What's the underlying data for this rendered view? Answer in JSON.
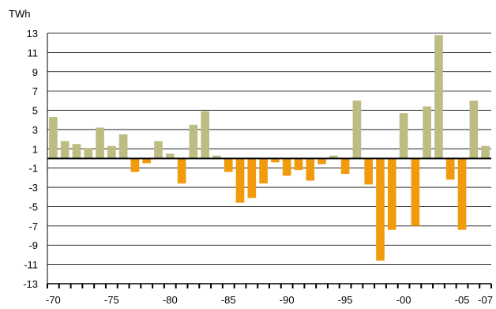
{
  "chart_data": {
    "type": "bar",
    "unit": "TWh",
    "title": "",
    "xlabel": "",
    "ylabel": "TWh",
    "ylim": [
      -13,
      13
    ],
    "yticks": [
      13,
      11,
      9,
      7,
      5,
      3,
      1,
      -1,
      -3,
      -5,
      -7,
      -9,
      -11,
      -13
    ],
    "grid": true,
    "legend": "none",
    "xtick_labels": [
      {
        "label": "-70",
        "year": 1970
      },
      {
        "label": "-75",
        "year": 1975
      },
      {
        "label": "-80",
        "year": 1980
      },
      {
        "label": "-85",
        "year": 1985
      },
      {
        "label": "-90",
        "year": 1990
      },
      {
        "label": "-95",
        "year": 1995
      },
      {
        "label": "-00",
        "year": 2000
      },
      {
        "label": "-05",
        "year": 2005
      },
      {
        "label": "-07",
        "year": 2007
      }
    ],
    "categories": [
      1970,
      1971,
      1972,
      1973,
      1974,
      1975,
      1976,
      1977,
      1978,
      1979,
      1980,
      1981,
      1982,
      1983,
      1984,
      1985,
      1986,
      1987,
      1988,
      1989,
      1990,
      1991,
      1992,
      1993,
      1994,
      1995,
      1996,
      1997,
      1998,
      1999,
      2000,
      2001,
      2002,
      2003,
      2004,
      2005,
      2006,
      2007
    ],
    "values": [
      4.3,
      1.8,
      1.5,
      1.1,
      3.2,
      1.3,
      2.5,
      -1.4,
      -0.5,
      1.8,
      0.5,
      -2.6,
      3.5,
      4.9,
      0.3,
      -1.4,
      -4.6,
      -4.1,
      -2.6,
      -0.4,
      -1.8,
      -1.2,
      -2.3,
      -0.6,
      0.3,
      -1.6,
      6.0,
      -2.7,
      -10.6,
      -7.4,
      4.7,
      -7.0,
      5.4,
      12.8,
      -2.2,
      -7.4,
      6.0,
      1.3
    ],
    "colors": {
      "positive": "#bdbc83",
      "negative": "#f19b0c",
      "grid": "#000000",
      "axis": "#000000"
    }
  }
}
